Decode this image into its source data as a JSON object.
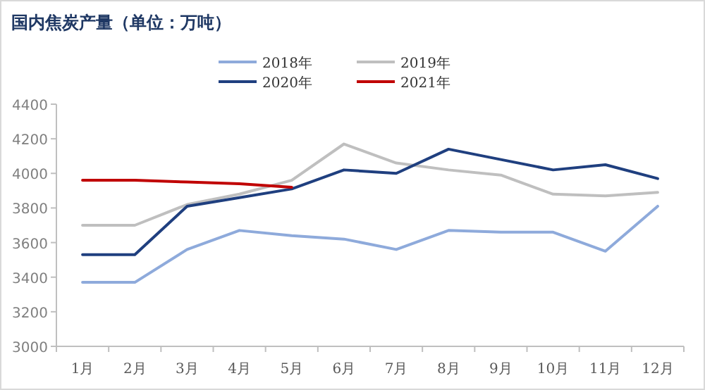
{
  "chart_data": {
    "type": "line",
    "title": "国内焦炭产量（单位：万吨）",
    "categories": [
      "1月",
      "2月",
      "3月",
      "4月",
      "5月",
      "6月",
      "7月",
      "8月",
      "9月",
      "10月",
      "11月",
      "12月"
    ],
    "series": [
      {
        "name": "2018年",
        "color": "#8eaadb",
        "values": [
          3370,
          3370,
          3560,
          3670,
          3640,
          3620,
          3560,
          3670,
          3660,
          3660,
          3550,
          3810
        ]
      },
      {
        "name": "2019年",
        "color": "#bfbfbf",
        "values": [
          3700,
          3700,
          3820,
          3880,
          3960,
          4170,
          4060,
          4020,
          3990,
          3880,
          3870,
          3890
        ]
      },
      {
        "name": "2020年",
        "color": "#1f3f7f",
        "values": [
          3530,
          3530,
          3810,
          3860,
          3910,
          4020,
          4000,
          4140,
          4080,
          4020,
          4050,
          3970
        ]
      },
      {
        "name": "2021年",
        "color": "#c00000",
        "values": [
          3960,
          3960,
          3950,
          3940,
          3920,
          null,
          null,
          null,
          null,
          null,
          null,
          null
        ]
      }
    ],
    "ylim": [
      3000,
      4400
    ],
    "yticks": [
      3000,
      3200,
      3400,
      3600,
      3800,
      4000,
      4200,
      4400
    ],
    "grid": false,
    "legend": "top",
    "marker": "none",
    "line_style": "solid"
  }
}
